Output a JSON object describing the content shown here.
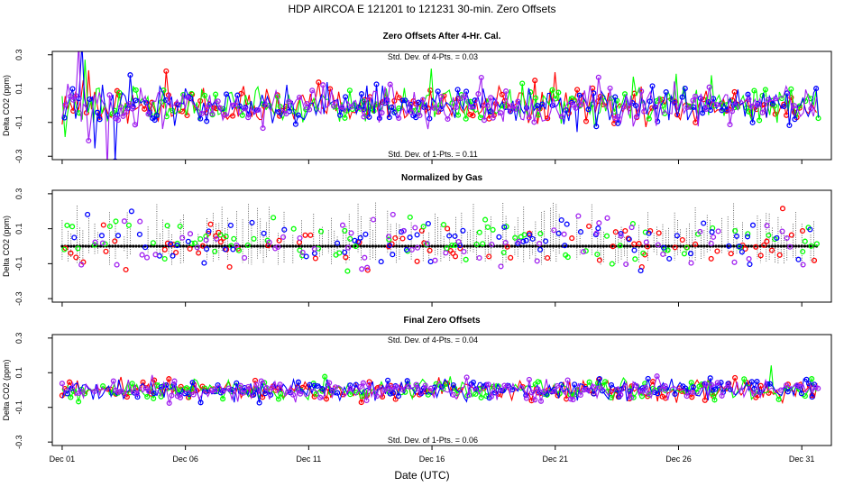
{
  "chart_data": {
    "type": "scatter",
    "title": "HDP   AIRCOA E   121201 to 121231   30-min. Zero Offsets",
    "xlabel": "Date (UTC)",
    "x_ticks": [
      "Dec 01",
      "Dec 06",
      "Dec 11",
      "Dec 16",
      "Dec 21",
      "Dec 26",
      "Dec 31"
    ],
    "x_tick_days": [
      1,
      6,
      11,
      16,
      21,
      26,
      31
    ],
    "xlim": [
      0.6,
      32.2
    ],
    "ylabel": "Delta CO2 (ppm)",
    "ylim": [
      -0.32,
      0.32
    ],
    "y_ticks": [
      -0.3,
      -0.1,
      0.1,
      0.3
    ],
    "y_tick_labels": [
      "-0.3",
      "-0.1",
      "0.1",
      "0.3"
    ],
    "series_colors": {
      "red": "#ff0000",
      "green": "#00ff00",
      "blue": "#0000ff",
      "purple": "#a020f0",
      "black": "#000000"
    },
    "panels": [
      {
        "title": "Zero Offsets After 4-Hr. Cal.",
        "annotation_top": "Std. Dev. of 4-Pts. =  0.03",
        "annotation_bottom": "Std. Dev. of 1-Pts. =  0.11",
        "spread": 0.075,
        "connected": true,
        "gas_reference_line": false
      },
      {
        "title": "Normalized by Gas",
        "annotation_top": "",
        "annotation_bottom": "",
        "spread": 0.085,
        "connected": false,
        "gas_reference_line": true
      },
      {
        "title": "Final Zero Offsets",
        "annotation_top": "Std. Dev. of 4-Pts. =  0.04",
        "annotation_bottom": "Std. Dev. of 1-Pts. =  0.06",
        "spread": 0.04,
        "connected": true,
        "gas_reference_line": false
      }
    ]
  }
}
